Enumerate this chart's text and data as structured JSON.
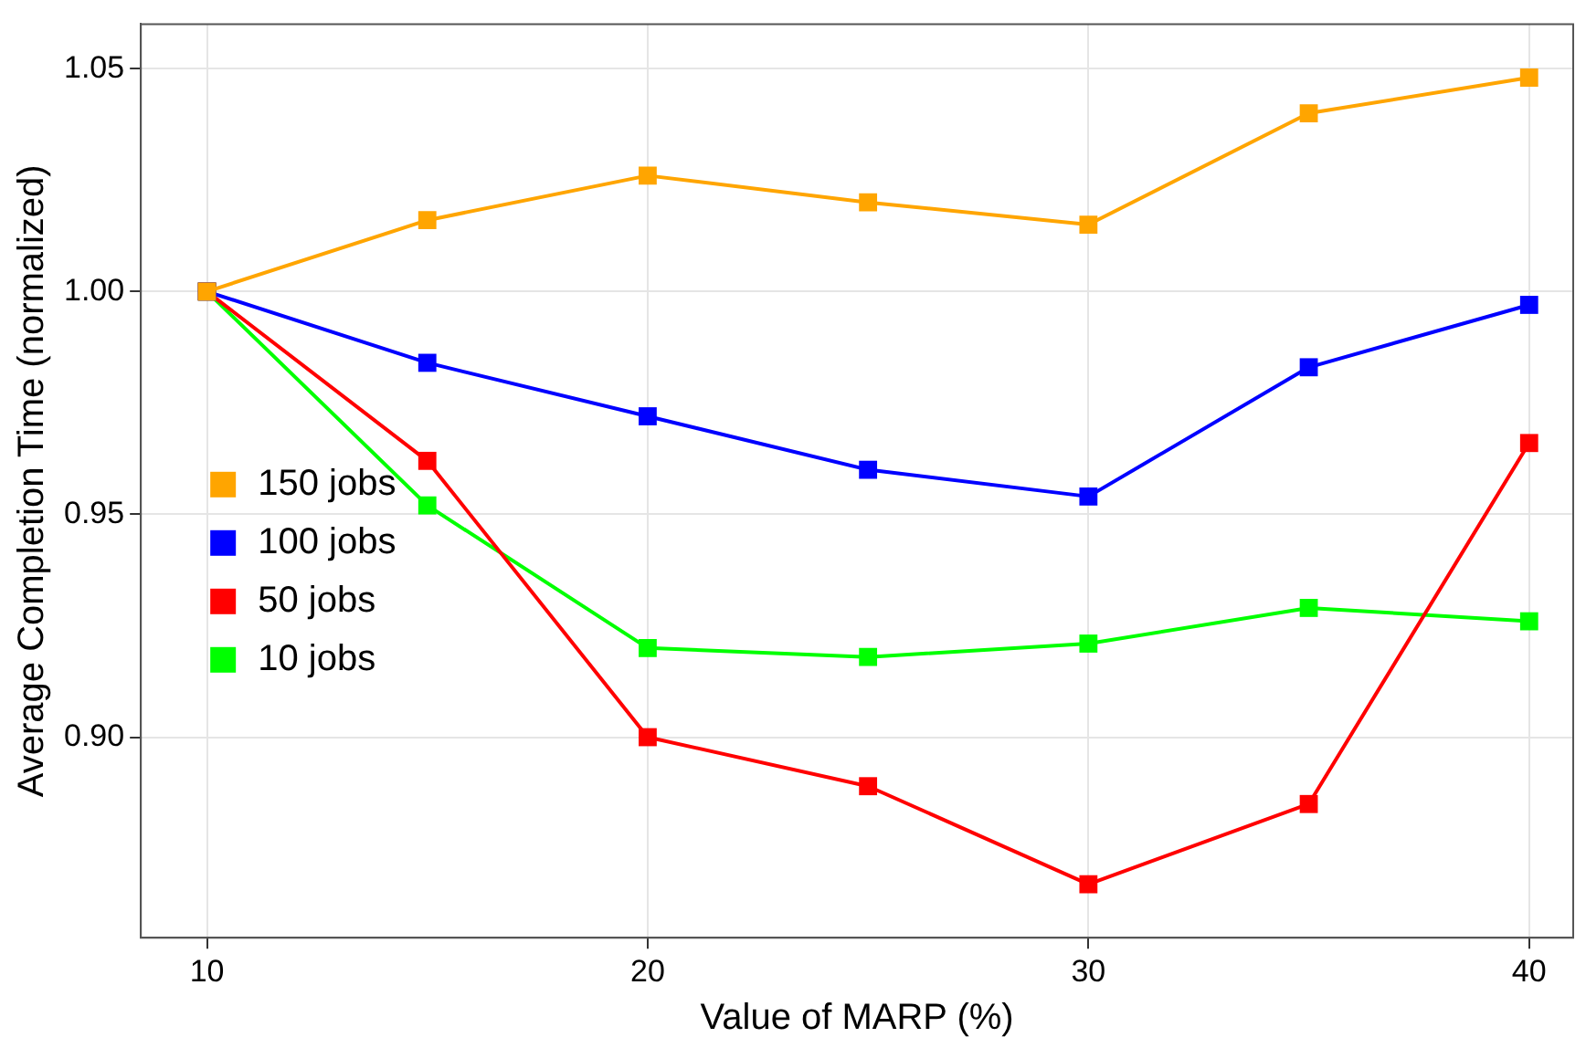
{
  "chart_data": {
    "type": "line",
    "xlabel": "Value of MARP (%)",
    "ylabel": "Average Completion Time (normalized)",
    "x": [
      10,
      15,
      20,
      25,
      30,
      35,
      40
    ],
    "series": [
      {
        "name": "150 jobs",
        "color": "#ffa500",
        "values": [
          1.0,
          1.016,
          1.026,
          1.02,
          1.015,
          1.04,
          1.048
        ]
      },
      {
        "name": "100 jobs",
        "color": "#0000ff",
        "values": [
          1.0,
          0.984,
          0.972,
          0.96,
          0.954,
          0.983,
          0.997
        ]
      },
      {
        "name": "50 jobs",
        "color": "#ff0000",
        "values": [
          1.0,
          0.962,
          0.9,
          0.889,
          0.867,
          0.885,
          0.966
        ]
      },
      {
        "name": "10 jobs",
        "color": "#00ff00",
        "values": [
          1.0,
          0.952,
          0.92,
          0.918,
          0.921,
          0.929,
          0.926
        ]
      }
    ],
    "xlim": [
      8.5,
      41
    ],
    "xticks": [
      10,
      20,
      30,
      40
    ],
    "ylim": [
      0.855,
      1.06
    ],
    "yticks": [
      {
        "value": 0.9,
        "label": "0.90"
      },
      0.95,
      {
        "value": 1.0,
        "label": "1.00"
      },
      1.05
    ],
    "grid": true,
    "legend": "left",
    "marker": "square",
    "line_style": "solid"
  }
}
